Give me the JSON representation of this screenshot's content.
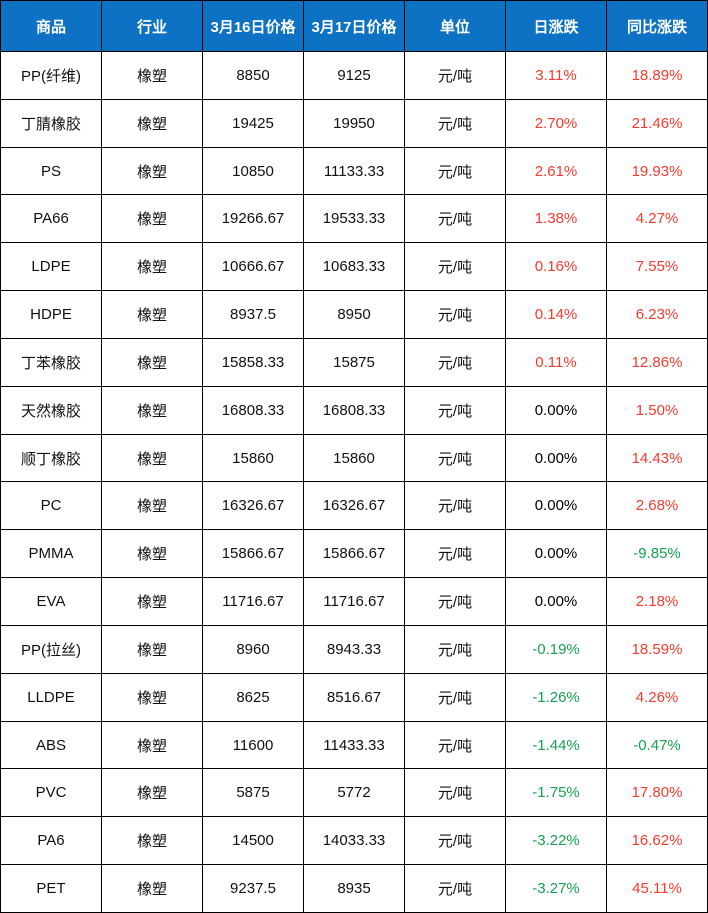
{
  "colors": {
    "header_bg": "#0d72c3",
    "header_text": "#ffffff",
    "up_red": "#f53b2e",
    "down_green": "#17a050",
    "flat_black": "#000000",
    "gridline": "#000000",
    "cell_bg": "#ffffff"
  },
  "chart_data": {
    "type": "table",
    "columns": [
      "商品",
      "行业",
      "3月16日价格",
      "3月17日价格",
      "单位",
      "日涨跌",
      "同比涨跌"
    ],
    "rows": [
      {
        "commodity": "PP(纤维)",
        "industry": "橡塑",
        "price_0316": "8850",
        "price_0317": "9125",
        "unit": "元/吨",
        "daily_change": "3.11%",
        "daily_trend": "up",
        "yoy_change": "18.89%",
        "yoy_trend": "up"
      },
      {
        "commodity": "丁腈橡胶",
        "industry": "橡塑",
        "price_0316": "19425",
        "price_0317": "19950",
        "unit": "元/吨",
        "daily_change": "2.70%",
        "daily_trend": "up",
        "yoy_change": "21.46%",
        "yoy_trend": "up"
      },
      {
        "commodity": "PS",
        "industry": "橡塑",
        "price_0316": "10850",
        "price_0317": "11133.33",
        "unit": "元/吨",
        "daily_change": "2.61%",
        "daily_trend": "up",
        "yoy_change": "19.93%",
        "yoy_trend": "up"
      },
      {
        "commodity": "PA66",
        "industry": "橡塑",
        "price_0316": "19266.67",
        "price_0317": "19533.33",
        "unit": "元/吨",
        "daily_change": "1.38%",
        "daily_trend": "up",
        "yoy_change": "4.27%",
        "yoy_trend": "up"
      },
      {
        "commodity": "LDPE",
        "industry": "橡塑",
        "price_0316": "10666.67",
        "price_0317": "10683.33",
        "unit": "元/吨",
        "daily_change": "0.16%",
        "daily_trend": "up",
        "yoy_change": "7.55%",
        "yoy_trend": "up"
      },
      {
        "commodity": "HDPE",
        "industry": "橡塑",
        "price_0316": "8937.5",
        "price_0317": "8950",
        "unit": "元/吨",
        "daily_change": "0.14%",
        "daily_trend": "up",
        "yoy_change": "6.23%",
        "yoy_trend": "up"
      },
      {
        "commodity": "丁苯橡胶",
        "industry": "橡塑",
        "price_0316": "15858.33",
        "price_0317": "15875",
        "unit": "元/吨",
        "daily_change": "0.11%",
        "daily_trend": "up",
        "yoy_change": "12.86%",
        "yoy_trend": "up"
      },
      {
        "commodity": "天然橡胶",
        "industry": "橡塑",
        "price_0316": "16808.33",
        "price_0317": "16808.33",
        "unit": "元/吨",
        "daily_change": "0.00%",
        "daily_trend": "flat",
        "yoy_change": "1.50%",
        "yoy_trend": "up"
      },
      {
        "commodity": "顺丁橡胶",
        "industry": "橡塑",
        "price_0316": "15860",
        "price_0317": "15860",
        "unit": "元/吨",
        "daily_change": "0.00%",
        "daily_trend": "flat",
        "yoy_change": "14.43%",
        "yoy_trend": "up"
      },
      {
        "commodity": "PC",
        "industry": "橡塑",
        "price_0316": "16326.67",
        "price_0317": "16326.67",
        "unit": "元/吨",
        "daily_change": "0.00%",
        "daily_trend": "flat",
        "yoy_change": "2.68%",
        "yoy_trend": "up"
      },
      {
        "commodity": "PMMA",
        "industry": "橡塑",
        "price_0316": "15866.67",
        "price_0317": "15866.67",
        "unit": "元/吨",
        "daily_change": "0.00%",
        "daily_trend": "flat",
        "yoy_change": "-9.85%",
        "yoy_trend": "down"
      },
      {
        "commodity": "EVA",
        "industry": "橡塑",
        "price_0316": "11716.67",
        "price_0317": "11716.67",
        "unit": "元/吨",
        "daily_change": "0.00%",
        "daily_trend": "flat",
        "yoy_change": "2.18%",
        "yoy_trend": "up"
      },
      {
        "commodity": "PP(拉丝)",
        "industry": "橡塑",
        "price_0316": "8960",
        "price_0317": "8943.33",
        "unit": "元/吨",
        "daily_change": "-0.19%",
        "daily_trend": "down",
        "yoy_change": "18.59%",
        "yoy_trend": "up"
      },
      {
        "commodity": "LLDPE",
        "industry": "橡塑",
        "price_0316": "8625",
        "price_0317": "8516.67",
        "unit": "元/吨",
        "daily_change": "-1.26%",
        "daily_trend": "down",
        "yoy_change": "4.26%",
        "yoy_trend": "up"
      },
      {
        "commodity": "ABS",
        "industry": "橡塑",
        "price_0316": "11600",
        "price_0317": "11433.33",
        "unit": "元/吨",
        "daily_change": "-1.44%",
        "daily_trend": "down",
        "yoy_change": "-0.47%",
        "yoy_trend": "down"
      },
      {
        "commodity": "PVC",
        "industry": "橡塑",
        "price_0316": "5875",
        "price_0317": "5772",
        "unit": "元/吨",
        "daily_change": "-1.75%",
        "daily_trend": "down",
        "yoy_change": "17.80%",
        "yoy_trend": "up"
      },
      {
        "commodity": "PA6",
        "industry": "橡塑",
        "price_0316": "14500",
        "price_0317": "14033.33",
        "unit": "元/吨",
        "daily_change": "-3.22%",
        "daily_trend": "down",
        "yoy_change": "16.62%",
        "yoy_trend": "up"
      },
      {
        "commodity": "PET",
        "industry": "橡塑",
        "price_0316": "9237.5",
        "price_0317": "8935",
        "unit": "元/吨",
        "daily_change": "-3.27%",
        "daily_trend": "down",
        "yoy_change": "45.11%",
        "yoy_trend": "up"
      }
    ]
  }
}
